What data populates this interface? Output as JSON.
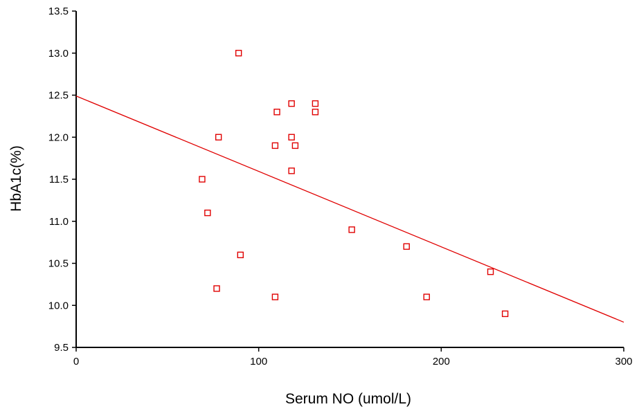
{
  "chart_data": {
    "type": "scatter",
    "title": "",
    "xlabel": "Serum NO (umol/L)",
    "ylabel": "HbA1c(%)",
    "xlim": [
      0,
      300
    ],
    "ylim": [
      9.5,
      13.5
    ],
    "x_ticks": [
      {
        "value": 0,
        "label": "0"
      },
      {
        "value": 100,
        "label": "100"
      },
      {
        "value": 200,
        "label": "200"
      },
      {
        "value": 300,
        "label": "300"
      }
    ],
    "y_ticks": [
      {
        "value": 9.5,
        "label": "9.5"
      },
      {
        "value": 10.0,
        "label": "10.0"
      },
      {
        "value": 10.5,
        "label": "10.5"
      },
      {
        "value": 11.0,
        "label": "11.0"
      },
      {
        "value": 11.5,
        "label": "11.5"
      },
      {
        "value": 12.0,
        "label": "12.0"
      },
      {
        "value": 12.5,
        "label": "12.5"
      },
      {
        "value": 13.0,
        "label": "13.0"
      },
      {
        "value": 13.5,
        "label": "13.5"
      }
    ],
    "grid": false,
    "legend": "none",
    "marker": "hollow-square",
    "point_color": "#e00000",
    "fit_line_color": "#e00000",
    "axis_color": "#000000",
    "series": [
      {
        "points": [
          {
            "x": 89,
            "y": 13.0
          },
          {
            "x": 118,
            "y": 12.4
          },
          {
            "x": 131,
            "y": 12.4
          },
          {
            "x": 110,
            "y": 12.3
          },
          {
            "x": 131,
            "y": 12.3
          },
          {
            "x": 78,
            "y": 12.0
          },
          {
            "x": 118,
            "y": 12.0
          },
          {
            "x": 109,
            "y": 11.9
          },
          {
            "x": 120,
            "y": 11.9
          },
          {
            "x": 118,
            "y": 11.6
          },
          {
            "x": 69,
            "y": 11.5
          },
          {
            "x": 72,
            "y": 11.1
          },
          {
            "x": 151,
            "y": 10.9
          },
          {
            "x": 181,
            "y": 10.7
          },
          {
            "x": 90,
            "y": 10.6
          },
          {
            "x": 227,
            "y": 10.4
          },
          {
            "x": 77,
            "y": 10.2
          },
          {
            "x": 109,
            "y": 10.1
          },
          {
            "x": 192,
            "y": 10.1
          },
          {
            "x": 235,
            "y": 9.9
          }
        ]
      }
    ],
    "fit_line": [
      {
        "x": 0,
        "y": 12.49
      },
      {
        "x": 300,
        "y": 9.8
      }
    ]
  }
}
